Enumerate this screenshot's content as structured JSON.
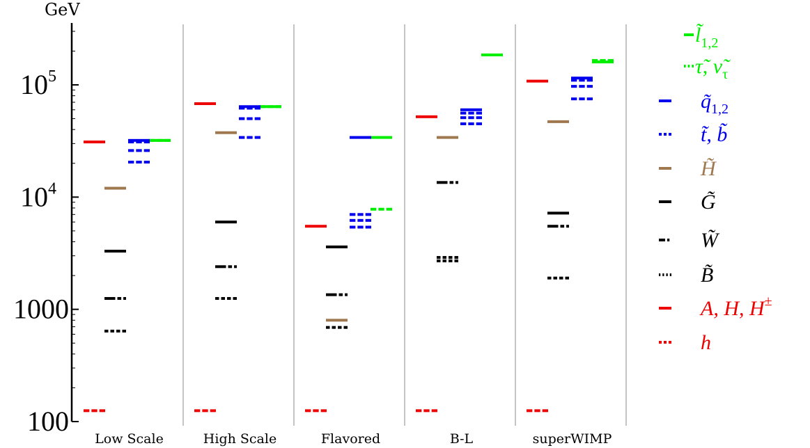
{
  "chart_data": {
    "type": "level-diagram",
    "ylabel": "GeV",
    "yscale": "log",
    "ylim": [
      100,
      400000
    ],
    "yticks": [
      {
        "value": 100,
        "label": "100",
        "exp": ""
      },
      {
        "value": 1000,
        "label": "1000",
        "exp": ""
      },
      {
        "value": 10000,
        "label": "10",
        "exp": "4"
      },
      {
        "value": 100000,
        "label": "10",
        "exp": "5"
      }
    ],
    "categories": [
      "Low Scale",
      "High Scale",
      "Flavored",
      "B-L",
      "superWIMP"
    ],
    "series": [
      {
        "name": "l̃₁,₂",
        "color": "#00ee00",
        "style": "solid",
        "slot": 3,
        "values": [
          [
            32000
          ],
          [
            64000
          ],
          [
            34000
          ],
          [
            185000
          ],
          [
            160000
          ]
        ]
      },
      {
        "name": "τ̃, ν̃τ",
        "color": "#00ee00",
        "style": "dashed",
        "slot": 3,
        "values": [
          [
            32000
          ],
          [
            64000
          ],
          [
            7800
          ],
          [],
          [
            165000
          ]
        ]
      },
      {
        "name": "q̃₁,₂",
        "color": "#0000ee",
        "style": "solid",
        "slot": 2,
        "values": [
          [
            32000
          ],
          [
            64000
          ],
          [
            34000
          ],
          [
            60000
          ],
          [
            115000
          ]
        ]
      },
      {
        "name": "t̃, b̃",
        "color": "#0000ee",
        "style": "dashed",
        "slot": 2,
        "values": [
          [
            31000,
            26000,
            20500
          ],
          [
            62000,
            50000,
            34000
          ],
          [
            7000,
            6200,
            5400
          ],
          [
            56000,
            51000,
            45000
          ],
          [
            110000,
            97000,
            75000
          ]
        ]
      },
      {
        "name": "H̃",
        "color": "#a07850",
        "style": "solid",
        "slot": 1,
        "values": [
          [
            12000
          ],
          [
            37500
          ],
          [
            800
          ],
          [
            34000
          ],
          [
            47000
          ]
        ]
      },
      {
        "name": "G̃",
        "color": "#000000",
        "style": "solid",
        "slot": 1,
        "values": [
          [
            3300
          ],
          [
            6000
          ],
          [
            3600
          ],
          [],
          [
            7200
          ]
        ]
      },
      {
        "name": "W̃",
        "color": "#000000",
        "style": "dashdot",
        "slot": 1,
        "values": [
          [
            1250
          ],
          [
            2400
          ],
          [
            1350
          ],
          [
            13500
          ],
          [
            5500
          ]
        ]
      },
      {
        "name": "B̃",
        "color": "#000000",
        "style": "dotted",
        "slot": 1,
        "values": [
          [
            640
          ],
          [
            1250
          ],
          [
            690
          ],
          [
            2900,
            2700
          ],
          [
            1900
          ]
        ]
      },
      {
        "name": "A, H, H±",
        "color": "#ee0000",
        "style": "solid",
        "slot": 0,
        "values": [
          [
            31000
          ],
          [
            68000
          ],
          [
            5500
          ],
          [
            52000
          ],
          [
            108000
          ]
        ]
      },
      {
        "name": "h",
        "color": "#ee0000",
        "style": "dashed",
        "slot": 0,
        "values": [
          [
            125
          ],
          [
            125
          ],
          [
            125
          ],
          [
            125
          ],
          [
            125
          ]
        ]
      }
    ],
    "legend": [
      {
        "label": "l̃",
        "sub": "1,2",
        "extra": "",
        "color": "#00ee00",
        "style": "solid"
      },
      {
        "label": "τ̃, ν̃",
        "sub": "τ",
        "extra": "",
        "color": "#00ee00",
        "style": "dashed"
      },
      {
        "label": "q̃",
        "sub": "1,2",
        "extra": "",
        "color": "#0000ee",
        "style": "solid"
      },
      {
        "label": "t̃, b̃",
        "sub": "",
        "extra": "",
        "color": "#0000ee",
        "style": "dashed"
      },
      {
        "label": "H̃",
        "sub": "",
        "extra": "",
        "color": "#a07850",
        "style": "solid"
      },
      {
        "label": "G̃",
        "sub": "",
        "extra": "",
        "color": "#000000",
        "style": "solid"
      },
      {
        "label": "W̃",
        "sub": "",
        "extra": "",
        "color": "#000000",
        "style": "dashdot"
      },
      {
        "label": "B̃",
        "sub": "",
        "extra": "",
        "color": "#000000",
        "style": "dotted"
      },
      {
        "label": "A, H, H",
        "sub": "",
        "extra": "±",
        "color": "#ee0000",
        "style": "solid"
      },
      {
        "label": "h",
        "sub": "",
        "extra": "",
        "color": "#ee0000",
        "style": "dashed"
      }
    ],
    "legend_placement": "right"
  }
}
